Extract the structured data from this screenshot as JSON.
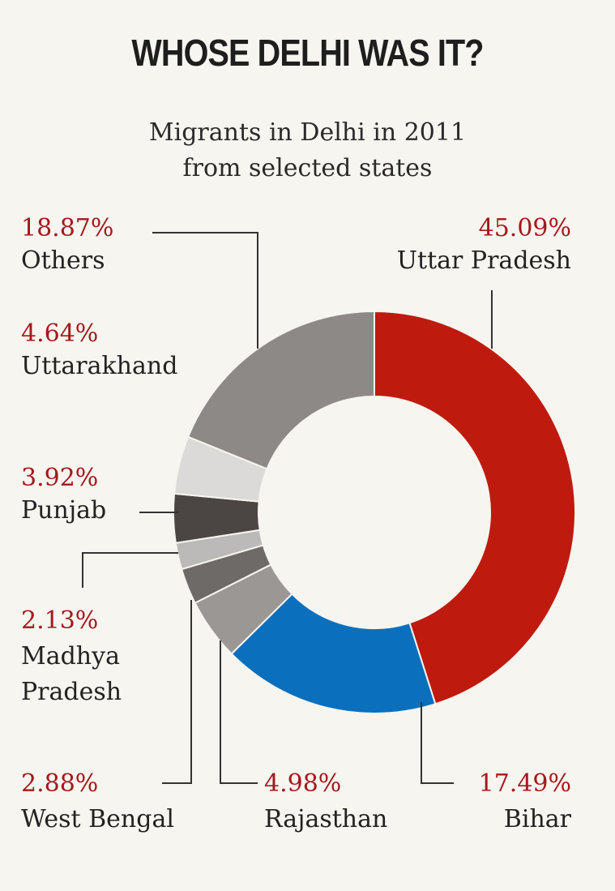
{
  "colors": {
    "background": "#f7f5ef",
    "accent": "#a3191d",
    "leader": "#333333"
  },
  "chart_data": {
    "type": "pie",
    "title": "WHOSE DELHI WAS IT?",
    "subtitle_lines": [
      "Migrants in Delhi in 2011",
      "from selected states"
    ],
    "unit": "%",
    "slices": [
      {
        "name": "Uttar Pradesh",
        "value": 45.09,
        "label": "45.09%",
        "color": "#bf1a0e"
      },
      {
        "name": "Bihar",
        "value": 17.49,
        "label": "17.49%",
        "color": "#0a6fbd"
      },
      {
        "name": "Rajasthan",
        "value": 4.98,
        "label": "4.98%",
        "color": "#9a9795"
      },
      {
        "name": "West Bengal",
        "value": 2.88,
        "label": "2.88%",
        "color": "#6e6a68"
      },
      {
        "name": "Madhya Pradesh",
        "value": 2.13,
        "label": "2.13%",
        "color": "#bcbab8"
      },
      {
        "name": "Punjab",
        "value": 3.92,
        "label": "3.92%",
        "color": "#4b4644"
      },
      {
        "name": "Uttarakhand",
        "value": 4.64,
        "label": "4.64%",
        "color": "#dcdad8"
      },
      {
        "name": "Others",
        "value": 18.87,
        "label": "18.87%",
        "color": "#8c8987"
      }
    ]
  },
  "labels": {
    "others": {
      "pct": "18.87%",
      "name": "Others"
    },
    "up": {
      "pct": "45.09%",
      "name": "Uttar Pradesh"
    },
    "uttarakhand": {
      "pct": "4.64%",
      "name": "Uttarakhand"
    },
    "punjab": {
      "pct": "3.92%",
      "name": "Punjab"
    },
    "mp": {
      "pct": "2.13%",
      "name_line1": "Madhya",
      "name_line2": "Pradesh"
    },
    "wb": {
      "pct": "2.88%",
      "name": "West Bengal"
    },
    "rajasthan": {
      "pct": "4.98%",
      "name": "Rajasthan"
    },
    "bihar": {
      "pct": "17.49%",
      "name": "Bihar"
    }
  }
}
